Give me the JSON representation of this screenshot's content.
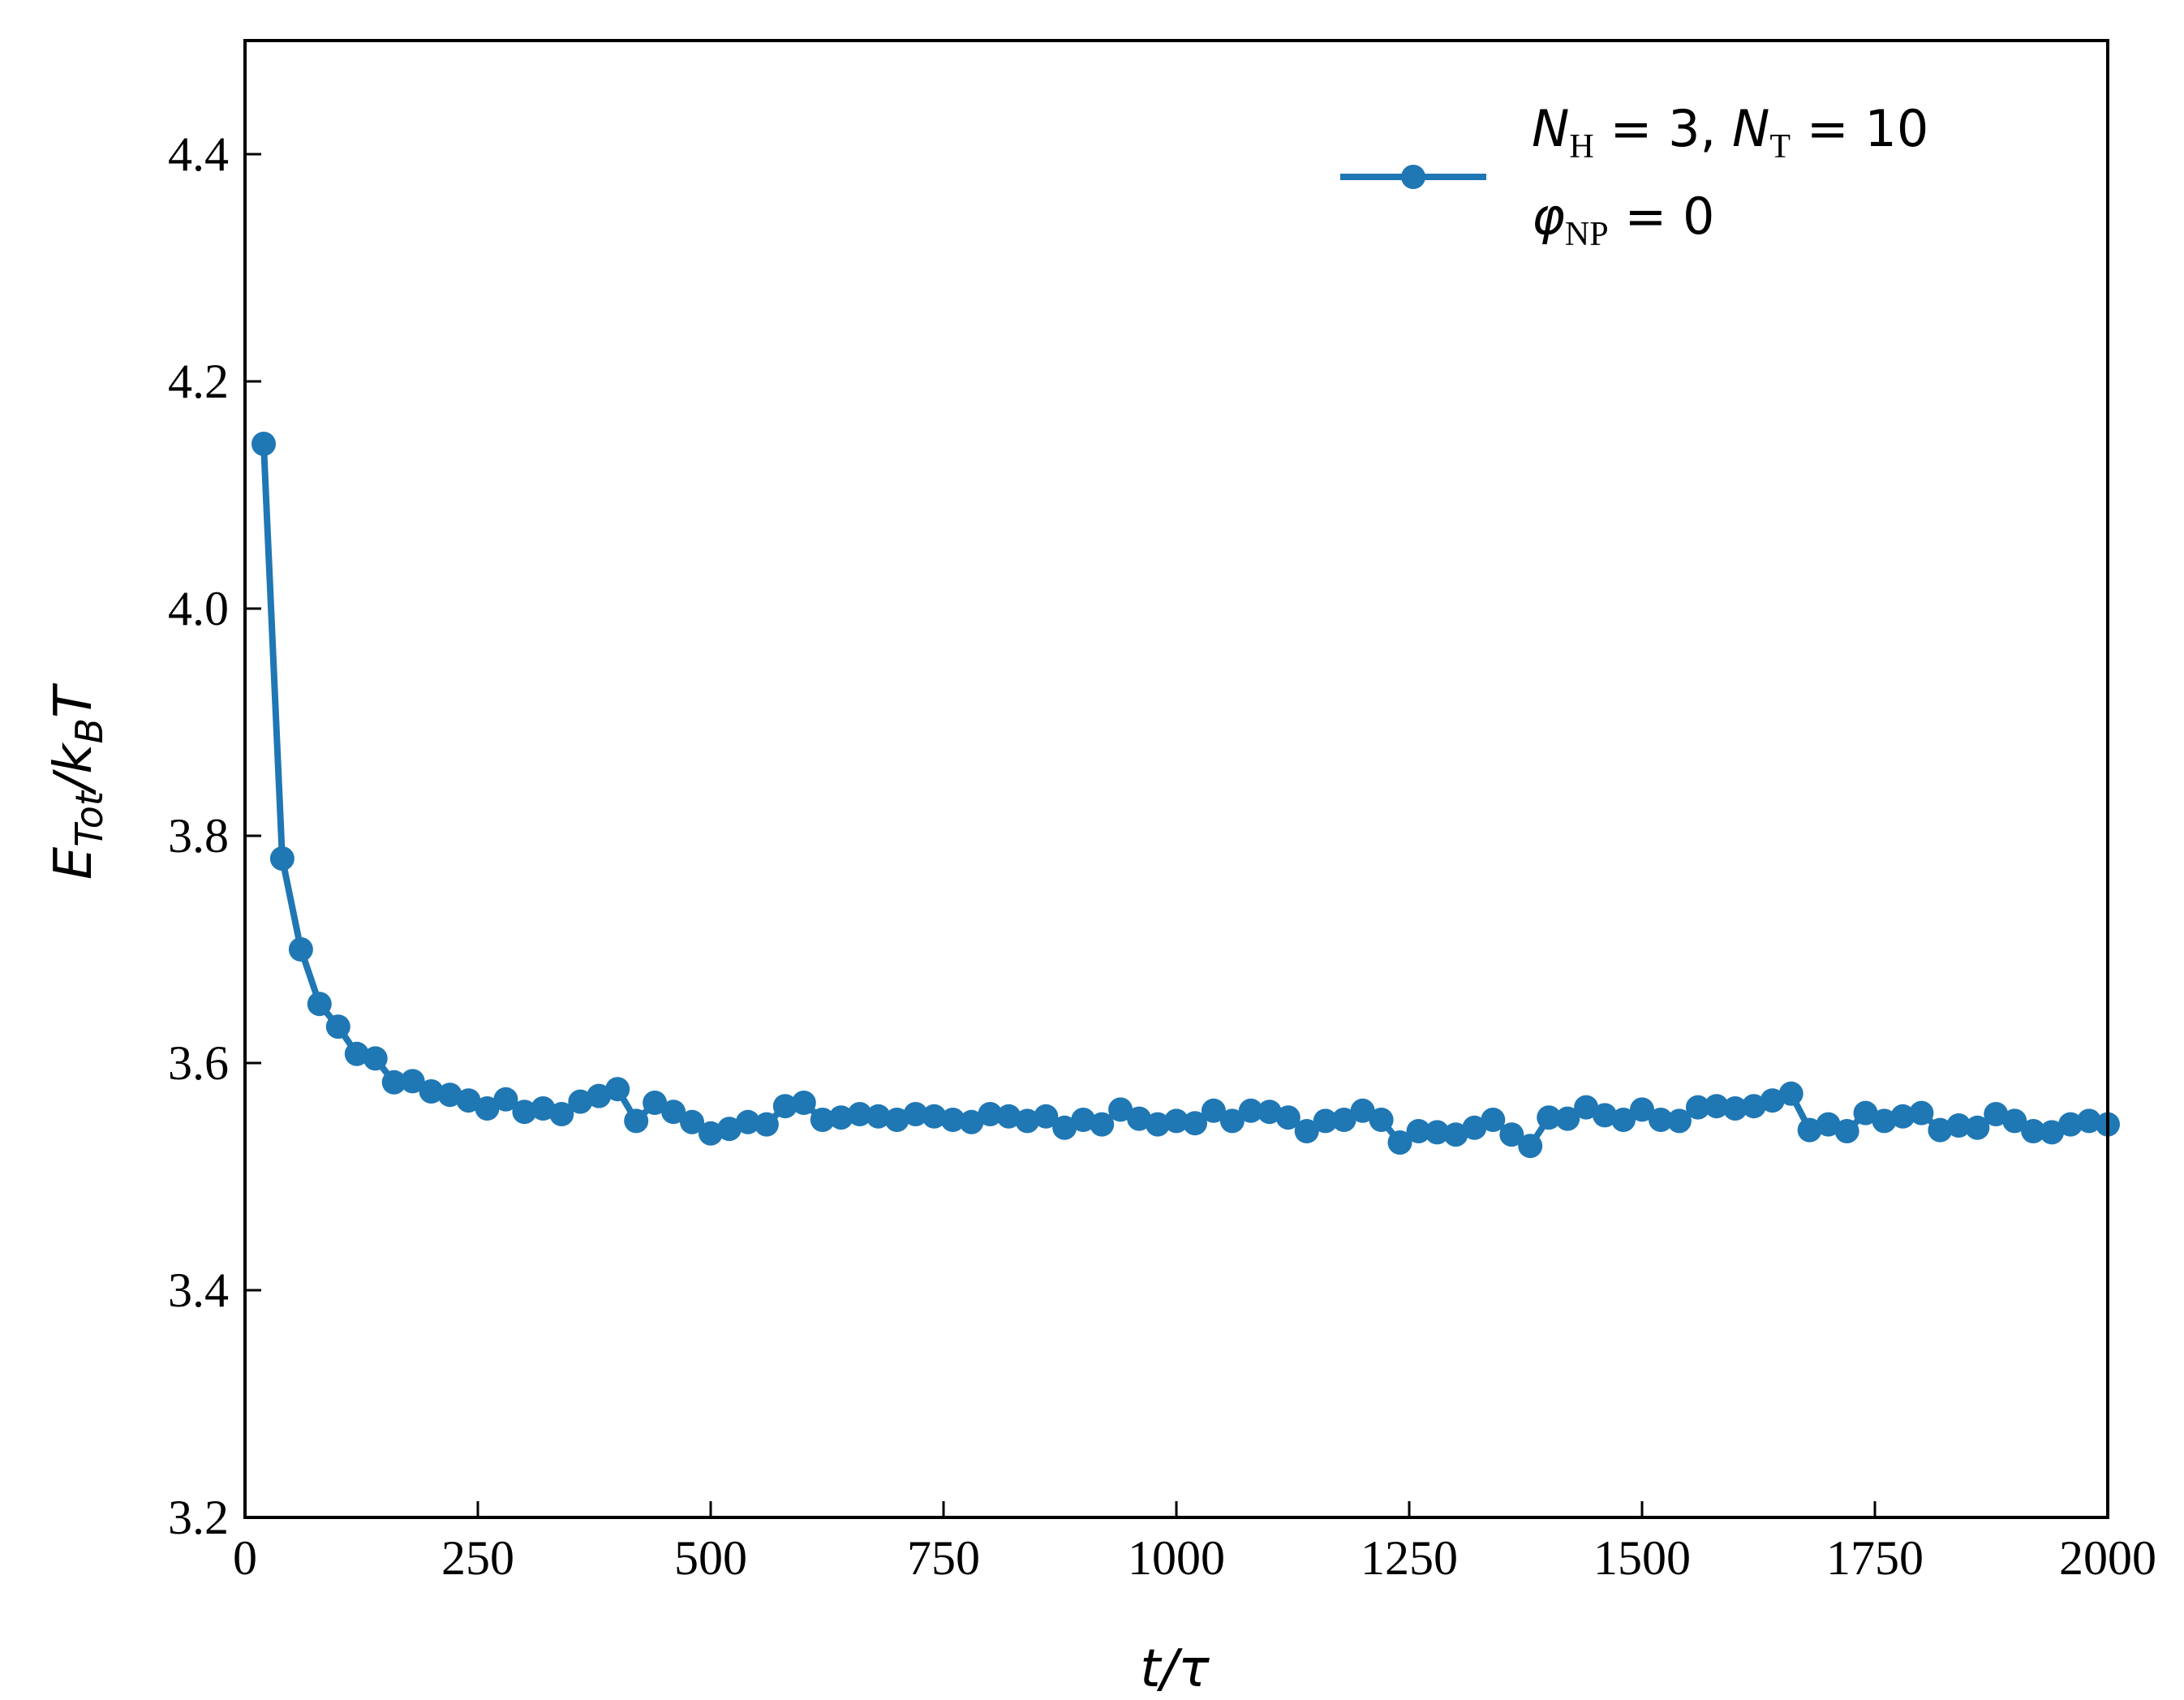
{
  "chart_data": {
    "type": "line",
    "xlabel": "t/τ",
    "ylabel": "E_Tot/k_B T",
    "xlim": [
      0,
      2000
    ],
    "ylim": [
      3.2,
      4.5
    ],
    "xticks": [
      0,
      250,
      500,
      750,
      1000,
      1250,
      1500,
      1750,
      2000
    ],
    "yticks": [
      3.2,
      3.4,
      3.6,
      3.8,
      4.0,
      4.2,
      4.4
    ],
    "xtick_labels": [
      "0",
      "250",
      "500",
      "750",
      "1000",
      "1250",
      "1500",
      "1750",
      "2000"
    ],
    "ytick_labels": [
      "3.2",
      "3.4",
      "3.6",
      "3.8",
      "4.0",
      "4.2",
      "4.4"
    ],
    "grid": false,
    "legend_position": "top-right",
    "series_color": "#1f77b4",
    "series": [
      {
        "name": "N_H = 3, N_T = 10  φ_NP = 0",
        "x": [
          20,
          40,
          60,
          80,
          100,
          120,
          140,
          160,
          180,
          200,
          220,
          240,
          260,
          280,
          300,
          320,
          340,
          360,
          380,
          400,
          420,
          440,
          460,
          480,
          500,
          520,
          540,
          560,
          580,
          600,
          620,
          640,
          660,
          680,
          700,
          720,
          740,
          760,
          780,
          800,
          820,
          840,
          860,
          880,
          900,
          920,
          940,
          960,
          980,
          1000,
          1020,
          1040,
          1060,
          1080,
          1100,
          1120,
          1140,
          1160,
          1180,
          1200,
          1220,
          1240,
          1260,
          1280,
          1300,
          1320,
          1340,
          1360,
          1380,
          1400,
          1420,
          1440,
          1460,
          1480,
          1500,
          1520,
          1540,
          1560,
          1580,
          1600,
          1620,
          1640,
          1660,
          1680,
          1700,
          1720,
          1740,
          1760,
          1780,
          1800,
          1820,
          1840,
          1860,
          1880,
          1900,
          1920,
          1940,
          1960,
          1980,
          2000
        ],
        "y": [
          4.145,
          3.78,
          3.7,
          3.652,
          3.632,
          3.608,
          3.604,
          3.583,
          3.584,
          3.575,
          3.572,
          3.567,
          3.56,
          3.568,
          3.557,
          3.56,
          3.555,
          3.566,
          3.571,
          3.577,
          3.549,
          3.565,
          3.557,
          3.548,
          3.538,
          3.542,
          3.548,
          3.546,
          3.562,
          3.565,
          3.55,
          3.552,
          3.555,
          3.553,
          3.55,
          3.555,
          3.553,
          3.55,
          3.548,
          3.555,
          3.553,
          3.549,
          3.553,
          3.543,
          3.55,
          3.546,
          3.559,
          3.551,
          3.546,
          3.549,
          3.547,
          3.558,
          3.549,
          3.558,
          3.557,
          3.552,
          3.54,
          3.549,
          3.55,
          3.558,
          3.55,
          3.53,
          3.54,
          3.539,
          3.537,
          3.543,
          3.55,
          3.537,
          3.527,
          3.552,
          3.551,
          3.561,
          3.554,
          3.55,
          3.559,
          3.55,
          3.549,
          3.561,
          3.562,
          3.56,
          3.562,
          3.567,
          3.573,
          3.541,
          3.546,
          3.54,
          3.556,
          3.549,
          3.553,
          3.556,
          3.541,
          3.545,
          3.543,
          3.555,
          3.549,
          3.54,
          3.539,
          3.546,
          3.549,
          3.546
        ]
      }
    ]
  },
  "legend": {
    "line1": {
      "n1": "N",
      "s1": "H",
      "eq1": " = 3, ",
      "n2": "N",
      "s2": "T",
      "eq2": " = 10"
    },
    "line2": {
      "phi": "φ",
      "s": "NP",
      "eq": " = 0"
    }
  },
  "axes": {
    "xlabel": {
      "t": "t",
      "rest": "/τ"
    },
    "ylabel": {
      "e": "E",
      "esub": "Tot",
      "slash": "/",
      "k": "k",
      "ksub": "B",
      "t": "T"
    }
  }
}
